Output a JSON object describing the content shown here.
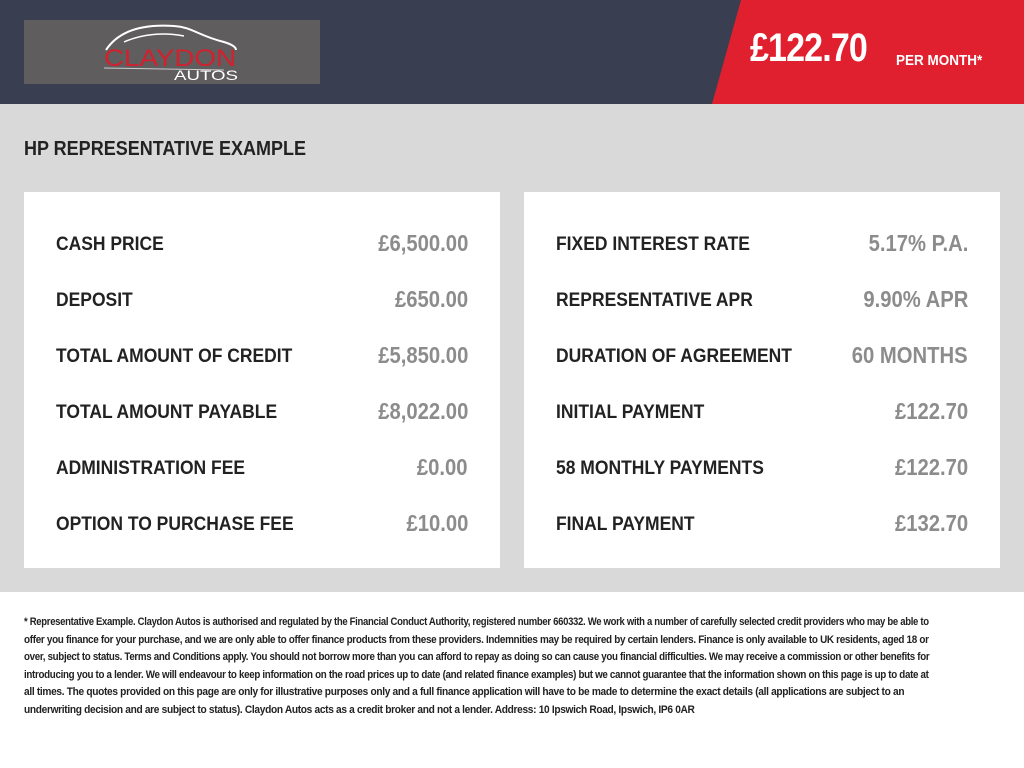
{
  "header": {
    "logo": {
      "line1": "CLAYDON",
      "line2": "AUTOS"
    },
    "price": "£122.70",
    "price_suffix": "PER MONTH*",
    "colors": {
      "background": "#393e51",
      "accent": "#e0202f"
    }
  },
  "main": {
    "title": "HP REPRESENTATIVE EXAMPLE",
    "left": [
      {
        "label": "CASH PRICE",
        "value": "£6,500.00"
      },
      {
        "label": "DEPOSIT",
        "value": "£650.00"
      },
      {
        "label": "TOTAL AMOUNT OF CREDIT",
        "value": "£5,850.00"
      },
      {
        "label": "TOTAL AMOUNT PAYABLE",
        "value": "£8,022.00"
      },
      {
        "label": "ADMINISTRATION FEE",
        "value": "£0.00"
      },
      {
        "label": "OPTION TO PURCHASE FEE",
        "value": "£10.00"
      }
    ],
    "right": [
      {
        "label": "FIXED INTEREST RATE",
        "value": "5.17% P.A."
      },
      {
        "label": "REPRESENTATIVE APR",
        "value": "9.90% APR"
      },
      {
        "label": "DURATION OF AGREEMENT",
        "value": "60 MONTHS"
      },
      {
        "label": "INITIAL PAYMENT",
        "value": "£122.70"
      },
      {
        "label": "58 MONTHLY PAYMENTS",
        "value": "£122.70"
      },
      {
        "label": "FINAL PAYMENT",
        "value": "£132.70"
      }
    ]
  },
  "footnote": [
    "* Representative Example. Claydon Autos is authorised and regulated by the Financial Conduct Authority, registered number 660332. We work with a number of carefully selected credit providers who may be able to",
    "offer you finance for your purchase, and we are only able to offer finance products from these providers. Indemnities may be required by certain lenders. Finance is only available to UK residents, aged 18 or",
    "over, subject to status. Terms and Conditions apply. You should not borrow more than you can afford to repay as doing so can cause you financial difficulties. We may receive a commission or other benefits for",
    "introducing you to a lender. We will endeavour to keep information on the road prices up to date (and related finance examples) but we cannot guarantee that the information shown on this page is up to date at",
    "all times. The quotes provided on this page are only for illustrative purposes only and a full finance application will have to be made to determine the exact details (all applications are subject to an",
    "underwriting decision and are subject to status). Claydon Autos acts as a credit broker and not a lender. Address: 10 Ipswich Road, Ipswich, IP6 0AR"
  ]
}
